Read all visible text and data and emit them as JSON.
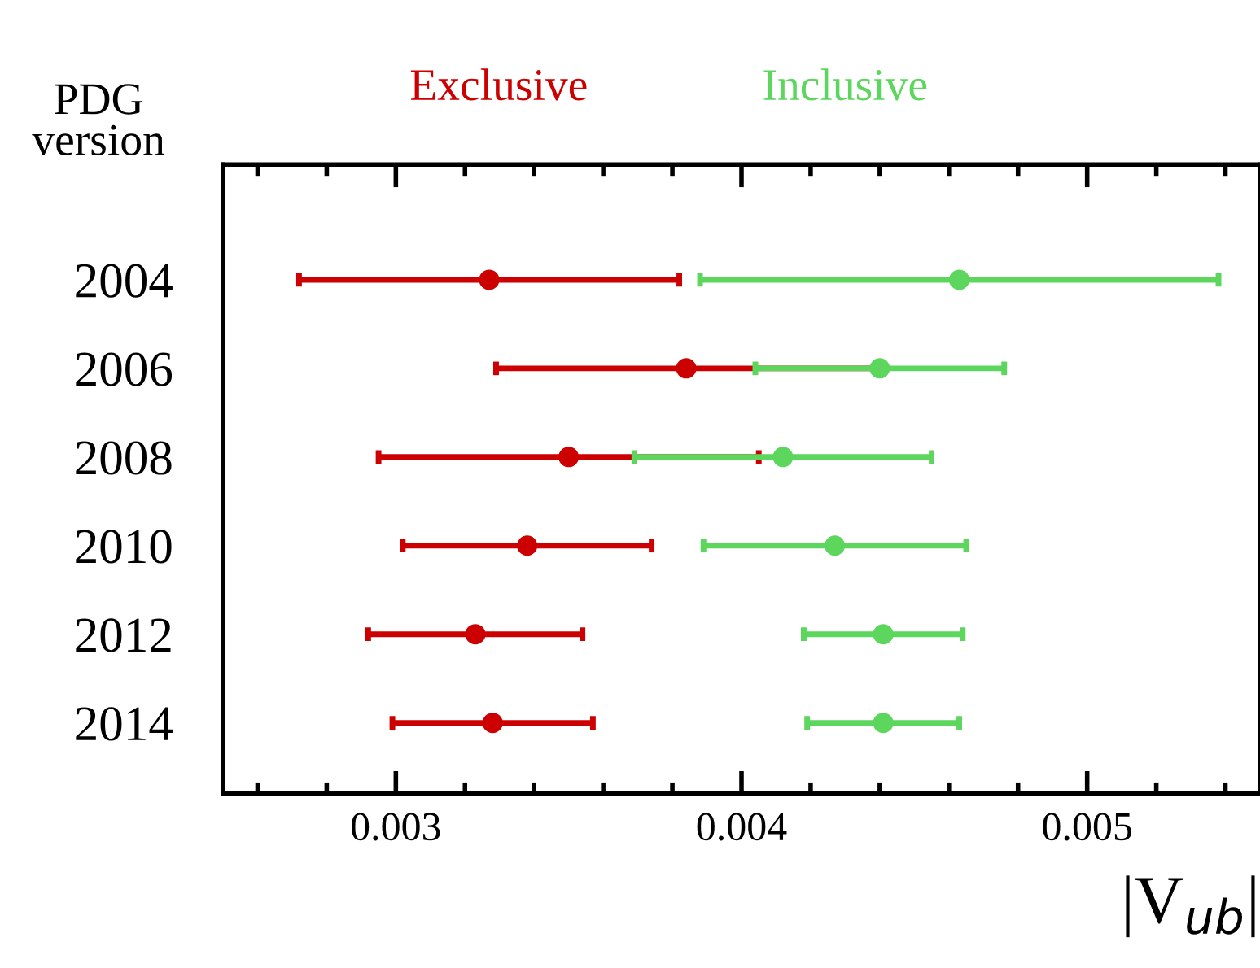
{
  "chart_data": {
    "type": "scatter",
    "orientation": "horizontal",
    "ylabel": "PDG version",
    "xlabel": "|V$_{ub}$|",
    "categories": [
      "2004",
      "2006",
      "2008",
      "2010",
      "2012",
      "2014"
    ],
    "series": [
      {
        "name": "Exclusive",
        "color": "#cc0000",
        "values": [
          0.00327,
          0.00384,
          0.0035,
          0.00338,
          0.00323,
          0.00328
        ],
        "errors": [
          [
            0.00272,
            0.00382
          ],
          [
            0.00329,
            0.00439
          ],
          [
            0.00295,
            0.00405
          ],
          [
            0.00302,
            0.00374
          ],
          [
            0.00292,
            0.00354
          ],
          [
            0.00299,
            0.00357
          ]
        ]
      },
      {
        "name": "Inclusive",
        "color": "#5cd65c",
        "values": [
          0.00463,
          0.0044,
          0.00412,
          0.00427,
          0.00441,
          0.00441
        ],
        "errors": [
          [
            0.00388,
            0.00538
          ],
          [
            0.00404,
            0.00476
          ],
          [
            0.00369,
            0.00455
          ],
          [
            0.00389,
            0.00465
          ],
          [
            0.00418,
            0.00464
          ],
          [
            0.00419,
            0.00463
          ]
        ]
      }
    ],
    "xlim": [
      0.0025,
      0.0055
    ],
    "xticks": [
      {
        "value": 0.0026,
        "label": null
      },
      {
        "value": 0.0028,
        "label": null
      },
      0.003,
      {
        "value": 0.0032,
        "label": null
      },
      {
        "value": 0.0034,
        "label": null
      },
      {
        "value": 0.0036,
        "label": null
      },
      {
        "value": 0.0038,
        "label": null
      },
      0.004,
      {
        "value": 0.0042,
        "label": null
      },
      {
        "value": 0.0044,
        "label": null
      },
      {
        "value": 0.0046,
        "label": null
      },
      {
        "value": 0.0048,
        "label": null
      },
      0.005,
      {
        "value": 0.0052,
        "label": null
      },
      {
        "value": 0.0054,
        "label": null
      }
    ],
    "marker": "circle",
    "legend": "top",
    "grid": false
  }
}
